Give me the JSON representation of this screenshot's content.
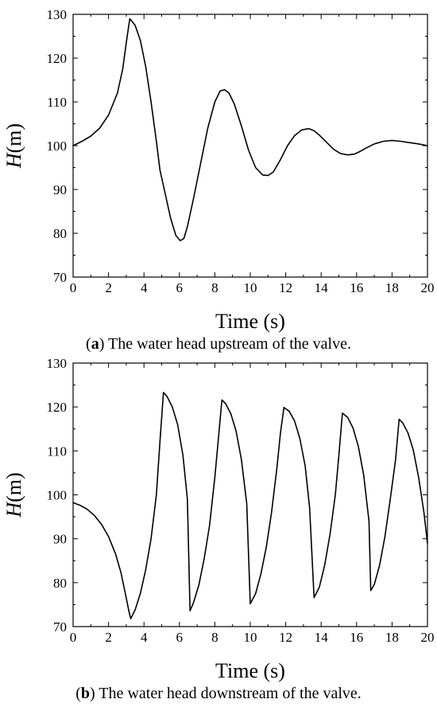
{
  "chart_data": [
    {
      "type": "line",
      "caption_letter": "a",
      "caption_text": "The water head upstream of the valve.",
      "xlabel": "Time (s)",
      "ylabel_var": "H",
      "ylabel_unit": "(m)",
      "xlim": [
        0,
        20
      ],
      "ylim": [
        70,
        130
      ],
      "xticks": [
        0,
        2,
        4,
        6,
        8,
        10,
        12,
        14,
        16,
        18,
        20
      ],
      "yticks": [
        70,
        80,
        90,
        100,
        110,
        120,
        130
      ],
      "grid": false,
      "series": [
        {
          "color": "#000000",
          "x": [
            0,
            0.5,
            1,
            1.5,
            2,
            2.5,
            2.8,
            3.0,
            3.2,
            3.5,
            3.8,
            4.1,
            4.4,
            4.7,
            4.9,
            5.2,
            5.5,
            5.8,
            6.05,
            6.25,
            6.45,
            6.8,
            7.2,
            7.6,
            8.0,
            8.3,
            8.55,
            8.8,
            9.1,
            9.5,
            9.9,
            10.3,
            10.7,
            11.0,
            11.3,
            11.7,
            12.1,
            12.5,
            12.9,
            13.3,
            13.6,
            13.9,
            14.3,
            14.7,
            15.1,
            15.5,
            15.9,
            16.2,
            16.5,
            17.0,
            17.5,
            18.0,
            18.5,
            19.0,
            19.5,
            20.0
          ],
          "y": [
            100,
            101,
            102.2,
            104,
            107,
            112,
            117.5,
            123.5,
            129,
            127.5,
            124,
            118,
            110,
            101,
            94.5,
            89,
            83.5,
            79.5,
            78.3,
            78.8,
            81.5,
            88,
            96,
            104,
            110,
            112.5,
            112.8,
            112,
            109.5,
            104.5,
            99,
            95,
            93.3,
            93.2,
            94,
            96.8,
            100,
            102.3,
            103.6,
            103.9,
            103.4,
            102.4,
            100.8,
            99.2,
            98.2,
            97.9,
            98.1,
            98.7,
            99.4,
            100.4,
            101,
            101.2,
            101,
            100.7,
            100.4,
            100
          ]
        }
      ]
    },
    {
      "type": "line",
      "caption_letter": "b",
      "caption_text": "The water head downstream of the valve.",
      "xlabel": "Time (s)",
      "ylabel_var": "H",
      "ylabel_unit": "(m)",
      "xlim": [
        0,
        20
      ],
      "ylim": [
        70,
        130
      ],
      "xticks": [
        0,
        2,
        4,
        6,
        8,
        10,
        12,
        14,
        16,
        18,
        20
      ],
      "yticks": [
        70,
        80,
        90,
        100,
        110,
        120,
        130
      ],
      "grid": false,
      "series": [
        {
          "color": "#000000",
          "x": [
            0,
            0.4,
            0.8,
            1.2,
            1.6,
            2.0,
            2.4,
            2.7,
            2.95,
            3.15,
            3.25,
            3.5,
            3.8,
            4.1,
            4.4,
            4.7,
            4.9,
            5.1,
            5.3,
            5.6,
            5.9,
            6.2,
            6.45,
            6.6,
            6.8,
            7.1,
            7.4,
            7.7,
            8.0,
            8.25,
            8.4,
            8.6,
            8.9,
            9.2,
            9.5,
            9.8,
            10.0,
            10.3,
            10.6,
            10.9,
            11.2,
            11.5,
            11.7,
            11.9,
            12.2,
            12.5,
            12.8,
            13.1,
            13.35,
            13.6,
            13.9,
            14.2,
            14.5,
            14.8,
            15.0,
            15.2,
            15.5,
            15.8,
            16.1,
            16.4,
            16.7,
            16.8,
            17.0,
            17.3,
            17.6,
            17.9,
            18.2,
            18.4,
            18.6,
            18.9,
            19.2,
            19.5,
            19.8,
            20.0
          ],
          "y": [
            98.2,
            97.6,
            96.7,
            95.3,
            93.3,
            90.5,
            86.5,
            82.3,
            77.5,
            73.5,
            71.8,
            73.8,
            77.6,
            83,
            90,
            100,
            112,
            123.3,
            122.4,
            120,
            116,
            109,
            99,
            73.6,
            75.5,
            79.5,
            85.5,
            93,
            104,
            115,
            121.6,
            120.8,
            118.5,
            114.5,
            108,
            98,
            75.2,
            77.5,
            82,
            88,
            96,
            106,
            114,
            119.9,
            119,
            116.8,
            112.8,
            106.5,
            97,
            76.6,
            79,
            84,
            91,
            100,
            109,
            118.6,
            117.6,
            115.2,
            111,
            104.5,
            94,
            78.2,
            79.6,
            84,
            90.5,
            99,
            108,
            117.2,
            116.4,
            114.1,
            110.2,
            104,
            96,
            89
          ]
        }
      ]
    }
  ]
}
